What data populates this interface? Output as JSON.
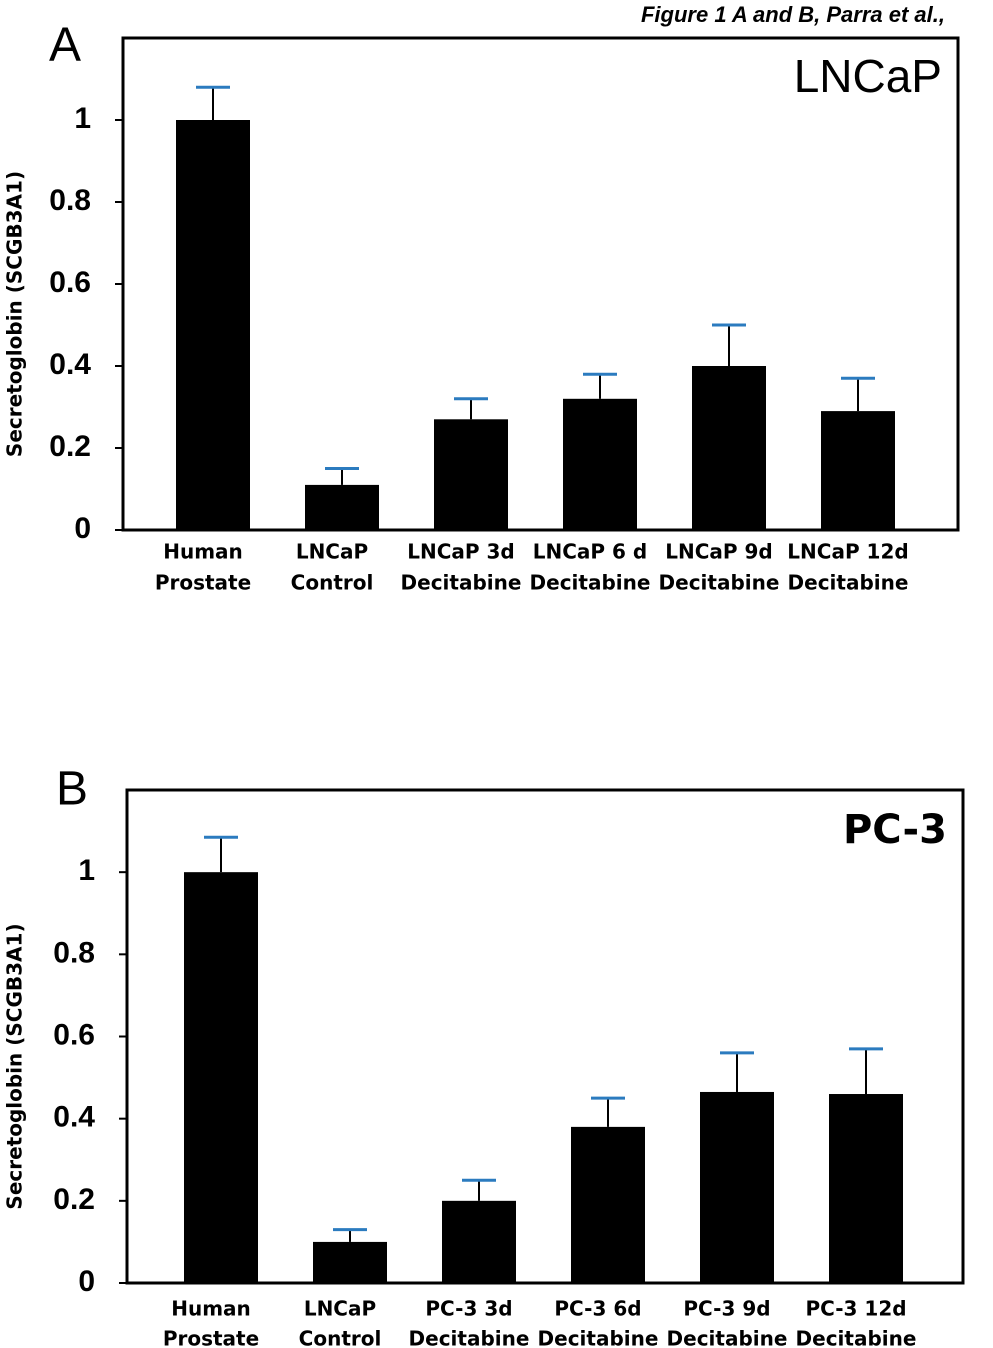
{
  "header": "Figure 1 A and B, Parra et al.,",
  "chart_data": [
    {
      "type": "bar",
      "panel": "A",
      "title": "LNCaP",
      "y_label": "Secretoglobin (SCGB3A1)",
      "categories": [
        [
          "Human",
          "Prostate"
        ],
        [
          "LNCaP",
          "Control"
        ],
        [
          "LNCaP 3d",
          "Decitabine"
        ],
        [
          "LNCaP 6 d",
          "Decitabine"
        ],
        [
          "LNCaP 9d",
          "Decitabine"
        ],
        [
          "LNCaP 12d",
          "Decitabine"
        ]
      ],
      "values": [
        1.0,
        0.11,
        0.27,
        0.32,
        0.4,
        0.29
      ],
      "errors": [
        0.08,
        0.04,
        0.05,
        0.06,
        0.1,
        0.08
      ],
      "color": "#000000",
      "error_cap_color": "#2b7bbf",
      "ylim": [
        0,
        1.2
      ],
      "yticks": [
        0,
        0.2,
        0.4,
        0.6,
        0.8,
        1
      ]
    },
    {
      "type": "bar",
      "panel": "B",
      "title": "PC-3",
      "y_label": "Secretoglobin (SCGB3A1)",
      "categories": [
        [
          "Human",
          "Prostate"
        ],
        [
          "LNCaP",
          "Control"
        ],
        [
          "PC-3  3d",
          "Decitabine"
        ],
        [
          "PC-3  6d",
          "Decitabine"
        ],
        [
          "PC-3 9d",
          "Decitabine"
        ],
        [
          "PC-3  12d",
          "Decitabine"
        ]
      ],
      "values": [
        1.0,
        0.1,
        0.2,
        0.38,
        0.465,
        0.46
      ],
      "errors": [
        0.085,
        0.03,
        0.05,
        0.07,
        0.095,
        0.11
      ],
      "color": "#000000",
      "error_cap_color": "#2b7bbf",
      "ylim": [
        0,
        1.2
      ],
      "yticks": [
        0,
        0.2,
        0.4,
        0.6,
        0.8,
        1
      ]
    }
  ]
}
